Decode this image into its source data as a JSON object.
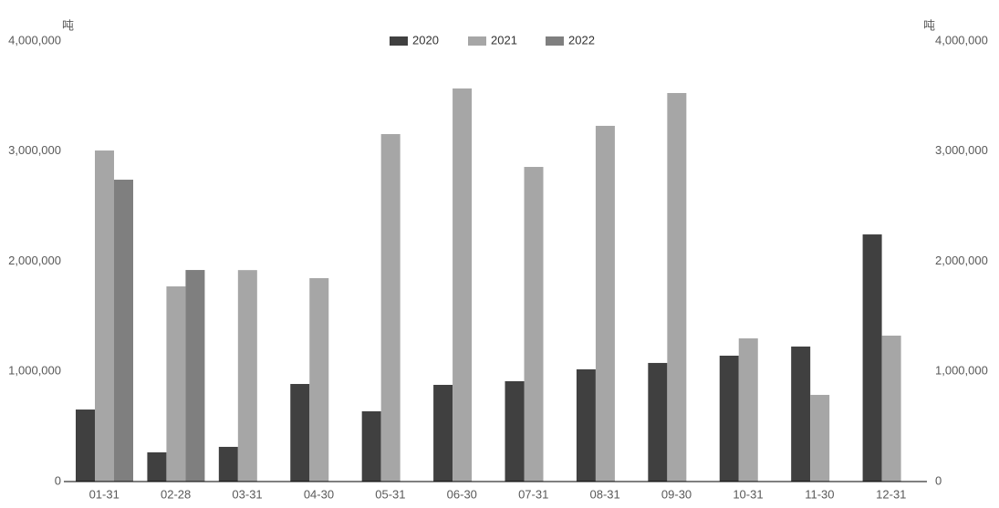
{
  "chart_data": {
    "type": "bar",
    "ylabel": "吨",
    "y2label": "吨",
    "categories": [
      "01-31",
      "02-28",
      "03-31",
      "04-30",
      "05-31",
      "06-30",
      "07-31",
      "08-31",
      "09-30",
      "10-31",
      "11-30",
      "12-31"
    ],
    "series": [
      {
        "name": "2020",
        "color": "#404040",
        "values": [
          654000,
          265000,
          315000,
          886000,
          638000,
          878000,
          911000,
          1019000,
          1077000,
          1143000,
          1226000,
          2244000
        ]
      },
      {
        "name": "2021",
        "color": "#a6a6a6",
        "values": [
          3006000,
          1772000,
          1920000,
          1847000,
          3155000,
          3569000,
          2857000,
          3230000,
          3528000,
          1300000,
          787000,
          1325000
        ]
      },
      {
        "name": "2022",
        "color": "#7f7f7f",
        "values": [
          2741000,
          1921000,
          null,
          null,
          null,
          null,
          null,
          null,
          null,
          null,
          null,
          null
        ]
      }
    ],
    "ylim": [
      0,
      4000000
    ],
    "yticks": [
      0,
      {
        "value": 1000000,
        "label": "1,000,000"
      },
      {
        "value": 2000000,
        "label": "2,000,000"
      },
      {
        "value": 3000000,
        "label": "3,000,000"
      },
      {
        "value": 4000000,
        "label": "4,000,000"
      }
    ],
    "y2lim": [
      0,
      4000000
    ],
    "y2ticks": [
      0,
      {
        "value": 1000000,
        "label": "1,000,000"
      },
      {
        "value": 2000000,
        "label": "2,000,000"
      },
      {
        "value": 3000000,
        "label": "3,000,000"
      },
      {
        "value": 4000000,
        "label": "4,000,000"
      }
    ],
    "legend": "top"
  }
}
